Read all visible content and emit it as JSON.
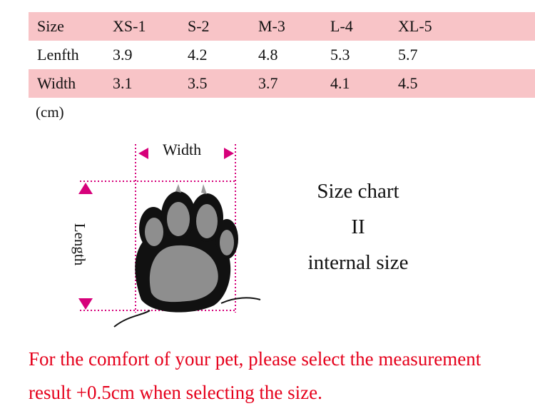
{
  "table": {
    "rows": [
      [
        "Size",
        "XS-1",
        "S-2",
        "M-3",
        "L-4",
        "XL-5"
      ],
      [
        "Lenfth",
        "3.9",
        "4.2",
        "4.8",
        "5.3",
        "5.7"
      ],
      [
        "Width",
        "3.1",
        "3.5",
        "3.7",
        "4.1",
        "4.5"
      ]
    ]
  },
  "unit": "(cm)",
  "diagram": {
    "width_label": "Width",
    "length_label": "Length"
  },
  "side_text": [
    "Size chart",
    "II",
    "internal size"
  ],
  "note": [
    "For the comfort of your pet, please select the measurement",
    "result +0.5cm when selecting the size."
  ]
}
